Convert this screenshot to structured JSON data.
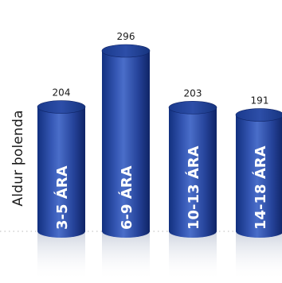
{
  "chart_data": {
    "type": "bar",
    "title": "",
    "xlabel": "",
    "ylabel": "Aldur þolenda",
    "categories": [
      "3-5 ÁRA",
      "6-9 ÁRA",
      "10-13 ÁRA",
      "14-18 ÁRA"
    ],
    "values": [
      204,
      296,
      203,
      191
    ],
    "ylim": [
      0,
      300
    ],
    "grid": false,
    "legend": "none",
    "bar_color": "#1f3f99",
    "bar_highlight": "#5b7fd6",
    "bar_shadow": "#0f2466",
    "label_color": "#ffffff",
    "value_color": "#1a1a1a"
  }
}
